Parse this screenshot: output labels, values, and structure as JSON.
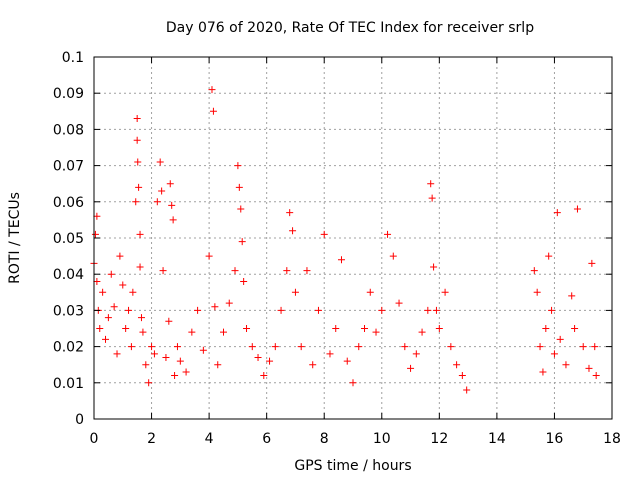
{
  "chart_data": {
    "type": "scatter",
    "title": "Day 076 of 2020, Rate Of TEC Index for receiver srlp",
    "xlabel": "GPS time / hours",
    "ylabel": "ROTI / TECUs",
    "xlim": [
      0,
      18
    ],
    "ylim": [
      0,
      0.1
    ],
    "xticks": [
      "0",
      "2",
      "4",
      "6",
      "8",
      "10",
      "12",
      "14",
      "16",
      "18"
    ],
    "yticks": [
      "0",
      "0.01",
      "0.02",
      "0.03",
      "0.04",
      "0.05",
      "0.06",
      "0.07",
      "0.08",
      "0.09",
      "0.1"
    ],
    "grid": true,
    "marker": "+",
    "series": [
      {
        "name": "ROTI",
        "color": "#ff0000",
        "x": [
          0.0,
          0.05,
          0.1,
          0.1,
          0.15,
          0.2,
          0.3,
          0.4,
          0.5,
          0.6,
          0.7,
          0.8,
          0.9,
          1.0,
          1.1,
          1.2,
          1.3,
          1.35,
          1.45,
          1.5,
          1.5,
          1.52,
          1.55,
          1.6,
          1.6,
          1.65,
          1.7,
          1.8,
          1.9,
          2.0,
          2.1,
          2.2,
          2.3,
          2.35,
          2.4,
          2.5,
          2.6,
          2.65,
          2.7,
          2.75,
          2.8,
          2.9,
          3.0,
          3.2,
          3.4,
          3.6,
          3.8,
          4.0,
          4.1,
          4.15,
          4.2,
          4.3,
          4.5,
          4.7,
          4.9,
          5.0,
          5.05,
          5.1,
          5.15,
          5.2,
          5.3,
          5.5,
          5.7,
          5.9,
          6.1,
          6.3,
          6.5,
          6.7,
          6.8,
          6.9,
          7.0,
          7.2,
          7.4,
          7.6,
          7.8,
          8.0,
          8.2,
          8.4,
          8.6,
          8.8,
          9.0,
          9.2,
          9.4,
          9.6,
          9.8,
          10.0,
          10.2,
          10.4,
          10.6,
          10.8,
          11.0,
          11.2,
          11.4,
          11.6,
          11.7,
          11.75,
          11.8,
          11.9,
          12.0,
          12.2,
          12.4,
          12.6,
          12.8,
          12.95,
          15.3,
          15.4,
          15.5,
          15.6,
          15.7,
          15.8,
          15.9,
          16.0,
          16.1,
          16.2,
          16.4,
          16.6,
          16.7,
          16.8,
          17.0,
          17.2,
          17.3,
          17.4,
          17.45
        ],
        "y": [
          0.043,
          0.051,
          0.038,
          0.056,
          0.03,
          0.025,
          0.035,
          0.022,
          0.028,
          0.04,
          0.031,
          0.018,
          0.045,
          0.037,
          0.025,
          0.03,
          0.02,
          0.035,
          0.06,
          0.083,
          0.077,
          0.071,
          0.064,
          0.051,
          0.042,
          0.028,
          0.024,
          0.015,
          0.01,
          0.02,
          0.018,
          0.06,
          0.071,
          0.063,
          0.041,
          0.017,
          0.027,
          0.065,
          0.059,
          0.055,
          0.012,
          0.02,
          0.016,
          0.013,
          0.024,
          0.03,
          0.019,
          0.045,
          0.091,
          0.085,
          0.031,
          0.015,
          0.024,
          0.032,
          0.041,
          0.07,
          0.064,
          0.058,
          0.049,
          0.038,
          0.025,
          0.02,
          0.017,
          0.012,
          0.016,
          0.02,
          0.03,
          0.041,
          0.057,
          0.052,
          0.035,
          0.02,
          0.041,
          0.015,
          0.03,
          0.051,
          0.018,
          0.025,
          0.044,
          0.016,
          0.01,
          0.02,
          0.025,
          0.035,
          0.024,
          0.03,
          0.051,
          0.045,
          0.032,
          0.02,
          0.014,
          0.018,
          0.024,
          0.03,
          0.065,
          0.061,
          0.042,
          0.03,
          0.025,
          0.035,
          0.02,
          0.015,
          0.012,
          0.008,
          0.041,
          0.035,
          0.02,
          0.013,
          0.025,
          0.045,
          0.03,
          0.018,
          0.057,
          0.022,
          0.015,
          0.034,
          0.025,
          0.058,
          0.02,
          0.014,
          0.043,
          0.02,
          0.012
        ]
      }
    ]
  }
}
